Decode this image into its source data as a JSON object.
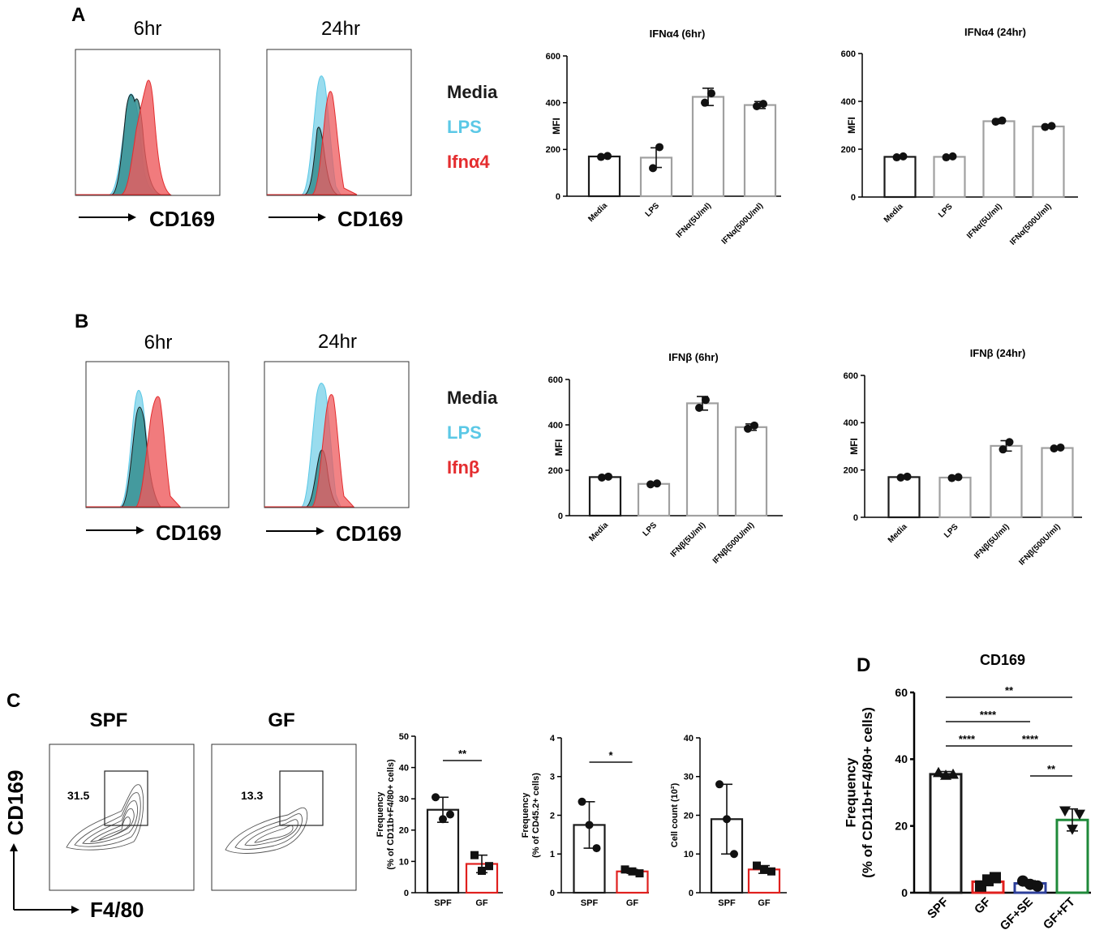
{
  "panel_letters": [
    "A",
    "B",
    "C",
    "D"
  ],
  "colors": {
    "media": "#1a1a1a",
    "lps": "#5bc8e6",
    "ifn": "#e42d2f",
    "media_fill": "#2e8a8a",
    "lps_fill": "#7fd3ea",
    "ifn_fill": "#ee5a5c",
    "gf_red": "#e0201e",
    "gf_se_blue": "#2d3f9a",
    "gf_ft_green": "#1f8a3a",
    "bar_gray": "#a0a0a0"
  },
  "panelA": {
    "hist_titles": [
      "6hr",
      "24hr"
    ],
    "axis_label": "CD169",
    "legend": [
      "Media",
      "LPS",
      "Ifnα4"
    ]
  },
  "panelB": {
    "hist_titles": [
      "6hr",
      "24hr"
    ],
    "axis_label": "CD169",
    "legend": [
      "Media",
      "LPS",
      "Ifnβ"
    ]
  },
  "panelC": {
    "plot_titles": [
      "SPF",
      "GF"
    ],
    "gate_values": [
      "31.5",
      "13.3"
    ],
    "y_axis": "CD169",
    "x_axis": "F4/80"
  },
  "chart_data": [
    {
      "id": "A1",
      "type": "bar",
      "title": "IFNα4 (6hr)",
      "ylabel": "MFI",
      "xlabel": "",
      "categories": [
        "Media",
        "LPS",
        "IFNα(5U/ml)",
        "IFNα(500U/ml)"
      ],
      "values": [
        170,
        165,
        425,
        390
      ],
      "err": [
        5,
        42,
        37,
        15
      ],
      "points": [
        [
          168,
          172
        ],
        [
          120,
          210
        ],
        [
          400,
          440
        ],
        [
          385,
          395
        ]
      ],
      "ylim": [
        0,
        600
      ],
      "yticks": [
        0,
        200,
        400,
        600
      ],
      "tick_labels": [
        "0",
        "200",
        "400",
        "600"
      ]
    },
    {
      "id": "A2",
      "type": "bar",
      "title": "IFNα4 (24hr)",
      "ylabel": "MFI",
      "xlabel": "",
      "categories": [
        "Media",
        "LPS",
        "IFNα(5U/ml)",
        "IFNα(500U/ml)"
      ],
      "values": [
        168,
        168,
        317,
        295
      ],
      "err": [
        6,
        6,
        10,
        6
      ],
      "points": [
        [
          166,
          170
        ],
        [
          166,
          170
        ],
        [
          315,
          320
        ],
        [
          293,
          297
        ]
      ],
      "ylim": [
        0,
        600
      ],
      "yticks": [
        0,
        200,
        400,
        600
      ],
      "tick_labels": [
        "0",
        "200",
        "400",
        "600"
      ]
    },
    {
      "id": "B1",
      "type": "bar",
      "title": "IFNβ (6hr)",
      "ylabel": "MFI",
      "xlabel": "",
      "categories": [
        "Media",
        "LPS",
        "IFNβ(5U/ml)",
        "IFNβ(500U/ml)"
      ],
      "values": [
        170,
        140,
        495,
        390
      ],
      "err": [
        6,
        6,
        30,
        14
      ],
      "points": [
        [
          168,
          172
        ],
        [
          138,
          142
        ],
        [
          475,
          510
        ],
        [
          383,
          397
        ]
      ],
      "ylim": [
        0,
        600
      ],
      "yticks": [
        0,
        200,
        400,
        600
      ],
      "tick_labels": [
        "0",
        "200",
        "400",
        "600"
      ]
    },
    {
      "id": "B2",
      "type": "bar",
      "title": "IFNβ (24hr)",
      "ylabel": "MFI",
      "xlabel": "",
      "categories": [
        "Media",
        "LPS",
        "IFNβ(5U/ml)",
        "IFNβ(500U/ml)"
      ],
      "values": [
        170,
        168,
        302,
        293
      ],
      "err": [
        6,
        6,
        22,
        6
      ],
      "points": [
        [
          168,
          172
        ],
        [
          166,
          170
        ],
        [
          287,
          318
        ],
        [
          291,
          295
        ]
      ],
      "ylim": [
        0,
        600
      ],
      "yticks": [
        0,
        200,
        400,
        600
      ],
      "tick_labels": [
        "0",
        "200",
        "400",
        "600"
      ]
    },
    {
      "id": "C1",
      "type": "bar",
      "title": "",
      "ylabel": "Frequency\n(% of CD11b+F4/80+ cells)",
      "xlabel": "",
      "categories": [
        "SPF",
        "GF"
      ],
      "values": [
        26.5,
        9.2
      ],
      "err": [
        4.0,
        2.8
      ],
      "points": [
        [
          30.5,
          23.5,
          25.0
        ],
        [
          12.0,
          7.0,
          8.5
        ]
      ],
      "ylim": [
        0,
        50
      ],
      "yticks": [
        0,
        10,
        20,
        30,
        40,
        50
      ],
      "tick_labels": [
        "0",
        "10",
        "20",
        "30",
        "40",
        "50"
      ],
      "significance": [
        "**"
      ]
    },
    {
      "id": "C2",
      "type": "bar",
      "title": "",
      "ylabel": "Frequency\n(% of CD45.2+ cells)",
      "xlabel": "",
      "categories": [
        "SPF",
        "GF"
      ],
      "values": [
        1.75,
        0.55
      ],
      "err": [
        0.6,
        0.05
      ],
      "points": [
        [
          2.35,
          1.75,
          1.15
        ],
        [
          0.6,
          0.55,
          0.5
        ]
      ],
      "ylim": [
        0,
        4
      ],
      "yticks": [
        0,
        1,
        2,
        3,
        4
      ],
      "tick_labels": [
        "0",
        "1",
        "2",
        "3",
        "4"
      ],
      "significance": [
        "*"
      ]
    },
    {
      "id": "C3",
      "type": "bar",
      "title": "",
      "ylabel": "Cell count (10²)",
      "xlabel": "",
      "categories": [
        "SPF",
        "GF"
      ],
      "values": [
        19.0,
        6.0
      ],
      "err": [
        9.0,
        1.0
      ],
      "points": [
        [
          28.0,
          19.0,
          10.0
        ],
        [
          7.0,
          6.0,
          5.5
        ]
      ],
      "ylim": [
        0,
        40
      ],
      "yticks": [
        0,
        10,
        20,
        30,
        40
      ],
      "tick_labels": [
        "0",
        "10",
        "20",
        "30",
        "40"
      ]
    },
    {
      "id": "D",
      "type": "bar",
      "title": "CD169",
      "ylabel": "Frequency\n(% of CD11b+F4/80+ cells)",
      "xlabel": "",
      "categories": [
        "SPF",
        "GF",
        "GF+SE",
        "GF+FT"
      ],
      "values": [
        35.5,
        3.3,
        2.8,
        21.8
      ],
      "err": [
        0.8,
        1.2,
        0.8,
        3.3
      ],
      "points": [
        [
          36.0,
          35.2,
          35.5
        ],
        [
          2.0,
          3.8,
          4.5
        ],
        [
          3.5,
          2.5,
          2.0
        ],
        [
          24.5,
          19.0,
          23.5
        ]
      ],
      "ylim": [
        0,
        60
      ],
      "yticks": [
        0,
        20,
        40,
        60
      ],
      "tick_labels": [
        "0",
        "20",
        "40",
        "60"
      ],
      "significance": [
        [
          "SPF",
          "GF+FT",
          "**"
        ],
        [
          "SPF",
          "GF+SE",
          "****"
        ],
        [
          "SPF",
          "GF",
          "****"
        ],
        [
          "GF",
          "GF+FT",
          "****"
        ],
        [
          "GF+SE",
          "GF+FT",
          "**"
        ]
      ]
    }
  ]
}
